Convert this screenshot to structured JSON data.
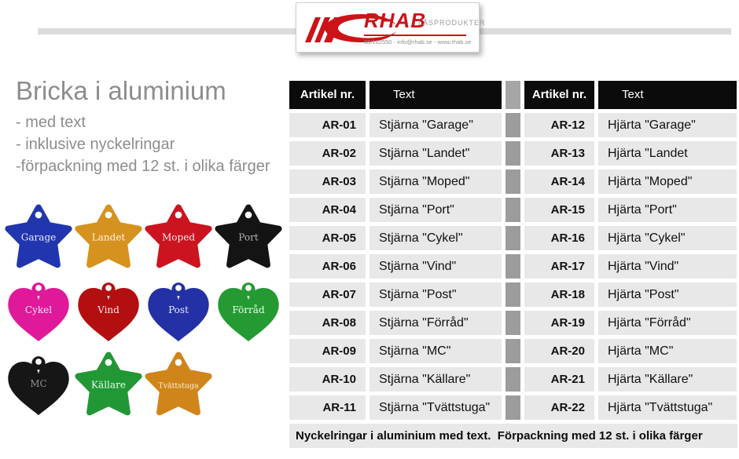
{
  "logo": {
    "brand": "RHAB",
    "suffix": "LÅSPRODUKTER",
    "contact": "08/182550  -  info@rhab.se - www.rhab.se"
  },
  "intro": {
    "title": "Bricka i aluminium",
    "lines": [
      "- med text",
      "- inklusive nyckelringar",
      "-förpackning med 12 st. i olika färger"
    ]
  },
  "tags": [
    {
      "shape": "star",
      "label": "Garage",
      "color": "#2136ae",
      "text_color": "#e9e9ff"
    },
    {
      "shape": "star",
      "label": "Landet",
      "color": "#d6921e",
      "text_color": "#fdf3e2"
    },
    {
      "shape": "star",
      "label": "Moped",
      "color": "#cb1420",
      "text_color": "#ffe8e8"
    },
    {
      "shape": "star",
      "label": "Port",
      "color": "#141414",
      "text_color": "#b5b5b5"
    },
    {
      "shape": "heart",
      "label": "Cykel",
      "color": "#e0189a",
      "text_color": "#ffe6f6"
    },
    {
      "shape": "heart",
      "label": "Vind",
      "color": "#b30f10",
      "text_color": "#ffe3e3"
    },
    {
      "shape": "heart",
      "label": "Post",
      "color": "#2330a6",
      "text_color": "#e6e9ff"
    },
    {
      "shape": "heart",
      "label": "Förråd",
      "color": "#259a33",
      "text_color": "#e8ffe9"
    },
    {
      "shape": "heart",
      "label": "MC",
      "color": "#161616",
      "text_color": "#8f8f8f"
    },
    {
      "shape": "star",
      "label": "Källare",
      "color": "#229735",
      "text_color": "#e8ffe9"
    },
    {
      "shape": "star",
      "label": "Tvättstuga",
      "color": "#d0851b",
      "text_color": "#fdf3e2"
    }
  ],
  "table": {
    "header": {
      "nr": "Artikel nr.",
      "text": "Text"
    },
    "left_rows": [
      {
        "nr": "AR-01",
        "text": "Stjärna \"Garage\""
      },
      {
        "nr": "AR-02",
        "text": "Stjärna \"Landet\""
      },
      {
        "nr": "AR-03",
        "text": "Stjärna \"Moped\""
      },
      {
        "nr": "AR-04",
        "text": "Stjärna \"Port\""
      },
      {
        "nr": "AR-05",
        "text": "Stjärna \"Cykel\""
      },
      {
        "nr": "AR-06",
        "text": "Stjärna \"Vind\""
      },
      {
        "nr": "AR-07",
        "text": "Stjärna \"Post\""
      },
      {
        "nr": "AR-08",
        "text": "Stjärna \"Förråd\""
      },
      {
        "nr": "AR-09",
        "text": "Stjärna \"MC\""
      },
      {
        "nr": "AR-10",
        "text": "Stjärna \"Källare\""
      },
      {
        "nr": "AR-11",
        "text": "Stjärna \"Tvättstuga\""
      }
    ],
    "right_rows": [
      {
        "nr": "AR-12",
        "text": "Hjärta \"Garage\""
      },
      {
        "nr": "AR-13",
        "text": "Hjärta \"Landet"
      },
      {
        "nr": "AR-14",
        "text": "Hjärta \"Moped\""
      },
      {
        "nr": "AR-15",
        "text": "Hjärta \"Port\""
      },
      {
        "nr": "AR-16",
        "text": "Hjärta \"Cykel\""
      },
      {
        "nr": "AR-17",
        "text": "Hjärta \"Vind\""
      },
      {
        "nr": "AR-18",
        "text": "Hjärta \"Post\""
      },
      {
        "nr": "AR-19",
        "text": "Hjärta \"Förråd\""
      },
      {
        "nr": "AR-20",
        "text": "Hjärta \"MC\""
      },
      {
        "nr": "AR-21",
        "text": "Hjärta \"Källare\""
      },
      {
        "nr": "AR-22",
        "text": "Hjärta \"Tvättstuga\""
      }
    ],
    "footer": "Nyckelringar i aluminium med text.  Förpackning med 12 st. i olika färger"
  },
  "colors": {
    "brand_red": "#cc1318",
    "header_bg": "#0b0b0b",
    "row_bg": "#e8e8e8",
    "spacer_gray": "#9c9c9c",
    "rule_gray": "#dcdcdc",
    "intro_gray": "#8d8d8d"
  }
}
